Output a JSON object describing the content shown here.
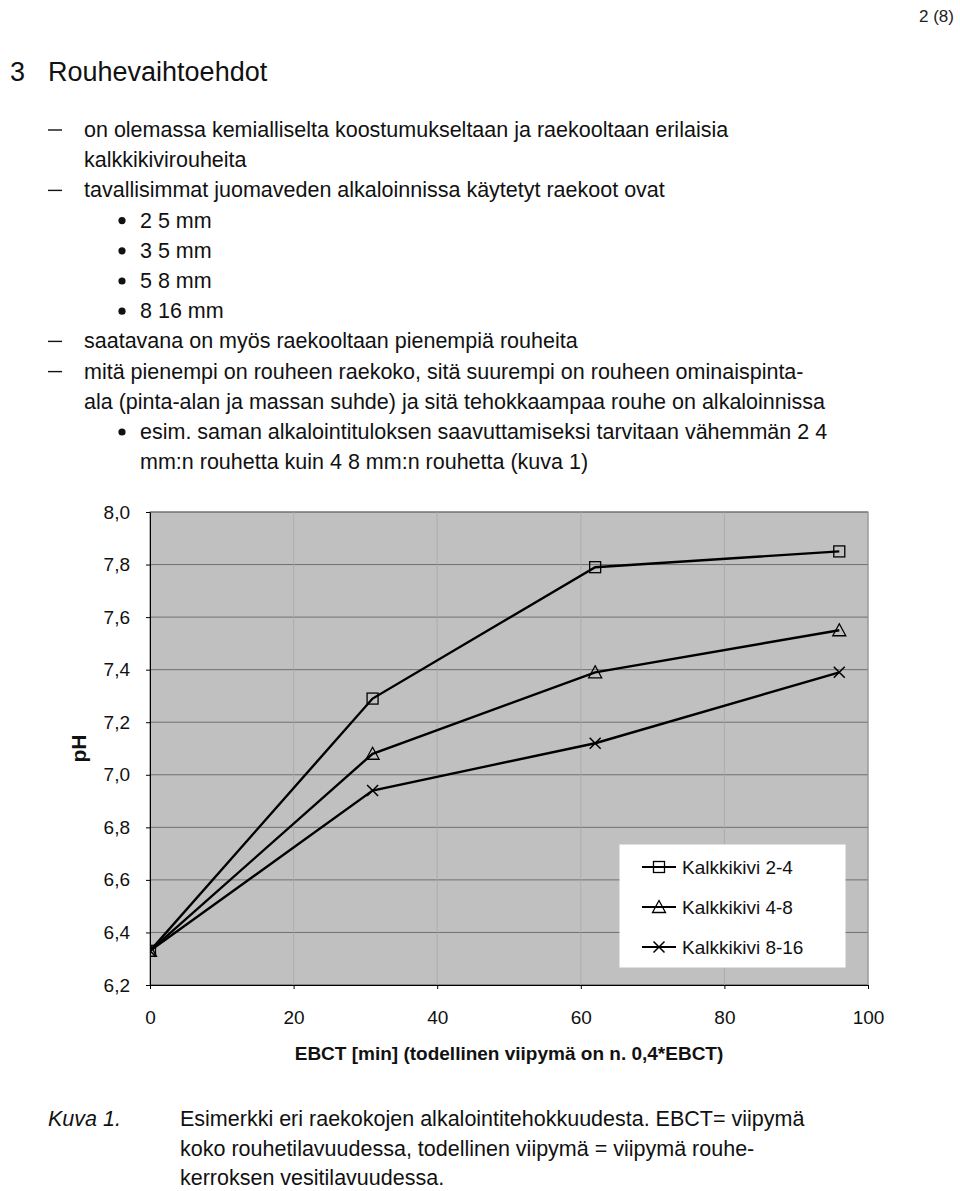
{
  "page_number": "2 (8)",
  "heading": {
    "number": "3",
    "title": "Rouhevaihtoehdot"
  },
  "list": [
    {
      "lines": [
        "on olemassa kemialliselta koostumukseltaan ja raekooltaan erilaisia",
        "kalkkikivirouheita"
      ]
    },
    {
      "lines": [
        "tavallisimmat juomaveden alkaloinnissa käytetyt raekoot ovat"
      ],
      "items": [
        {
          "lines": [
            "2 5 mm"
          ]
        },
        {
          "lines": [
            "3 5 mm"
          ]
        },
        {
          "lines": [
            "5 8 mm"
          ]
        },
        {
          "lines": [
            "8 16 mm"
          ]
        }
      ]
    },
    {
      "lines": [
        "saatavana on myös raekooltaan pienempiä rouheita"
      ]
    },
    {
      "lines": [
        "mitä pienempi on rouheen raekoko, sitä suurempi on rouheen ominaispinta-",
        "ala (pinta-alan ja massan suhde) ja sitä tehokkaampaa rouhe on alkaloinnissa"
      ],
      "items": [
        {
          "lines": [
            "esim. saman alkalointituloksen saavuttamiseksi tarvitaan vähemmän 2 4",
            "mm:n rouhetta kuin 4 8 mm:n rouhetta (kuva 1)"
          ]
        }
      ]
    }
  ],
  "chart_data": {
    "type": "line",
    "x_label": "EBCT [min] (todellinen viipymä on n. 0,4*EBCT)",
    "y_label": "pH",
    "x": [
      0,
      31,
      62,
      96
    ],
    "series": [
      {
        "name": "Kalkkikivi 2-4",
        "color": "#000000",
        "marker": "square",
        "values": [
          6.33,
          7.29,
          7.79,
          7.85
        ]
      },
      {
        "name": "Kalkkikivi 4-8",
        "color": "#000000",
        "marker": "triangle",
        "values": [
          6.33,
          7.08,
          7.39,
          7.55
        ]
      },
      {
        "name": "Kalkkikivi 8-16",
        "color": "#000000",
        "marker": "x",
        "values": [
          6.33,
          6.94,
          7.12,
          7.39
        ]
      }
    ],
    "xlim": [
      0,
      100
    ],
    "xticks": [
      0,
      20,
      40,
      60,
      80,
      100
    ],
    "ylim": [
      6.2,
      8.0
    ],
    "yticks": [
      {
        "value": 6.2,
        "label": "6,2"
      },
      {
        "value": 6.4,
        "label": "6,4"
      },
      {
        "value": 6.6,
        "label": "6,6"
      },
      {
        "value": 6.8,
        "label": "6,8"
      },
      {
        "value": 7.0,
        "label": "7,0"
      },
      {
        "value": 7.2,
        "label": "7,2"
      },
      {
        "value": 7.4,
        "label": "7,4"
      },
      {
        "value": 7.6,
        "label": "7,6"
      },
      {
        "value": 7.8,
        "label": "7,8"
      },
      {
        "value": 8.0,
        "label": "8,0"
      }
    ],
    "grid": true,
    "legend": "lower right"
  },
  "caption": {
    "label": "Kuva 1.",
    "lines": [
      "Esimerkki eri raekokojen alkalointitehokkuudesta. EBCT= viipymä",
      "koko rouhetilavuudessa, todellinen viipymä = viipymä rouhe-",
      "kerroksen vesitilavuudessa."
    ]
  }
}
